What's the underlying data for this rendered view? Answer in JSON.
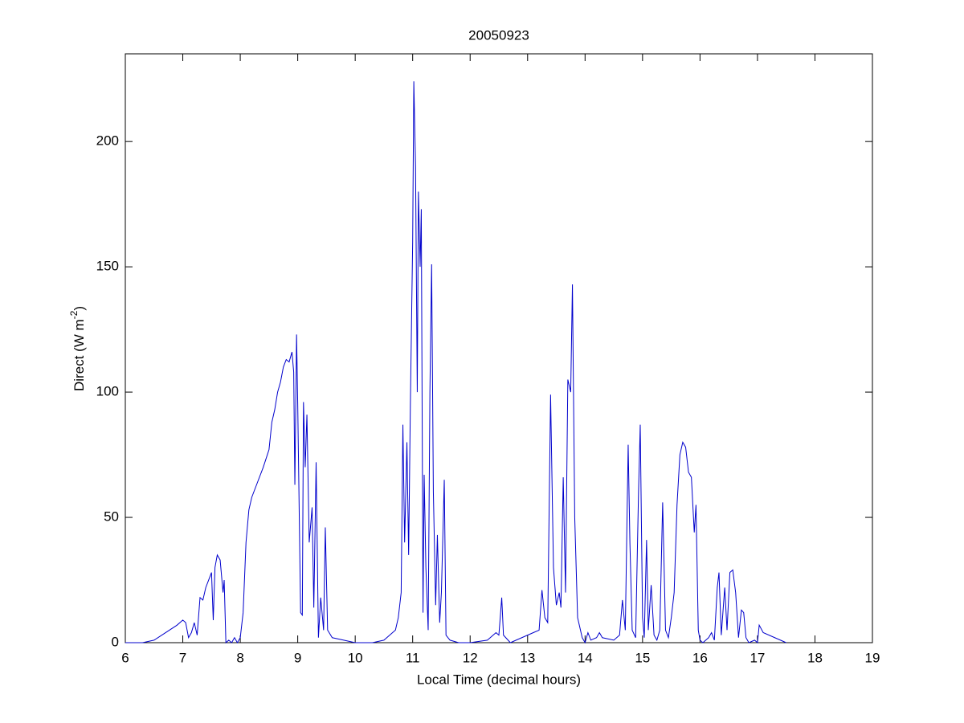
{
  "chart_data": {
    "type": "line",
    "title": "20050923",
    "xlabel": "Local Time (decimal hours)",
    "ylabel": [
      "Direct (W m",
      "-2",
      ")"
    ],
    "xlim": [
      6,
      19
    ],
    "ylim": [
      0,
      235
    ],
    "xticks": [
      6,
      7,
      8,
      9,
      10,
      11,
      12,
      13,
      14,
      15,
      16,
      17,
      18,
      19
    ],
    "yticks": [
      0,
      50,
      100,
      150,
      200
    ],
    "grid": false,
    "series": [
      {
        "color": "#0000cc",
        "x": [
          6.0,
          6.3,
          6.5,
          6.7,
          6.9,
          7.0,
          7.05,
          7.1,
          7.15,
          7.2,
          7.25,
          7.3,
          7.35,
          7.4,
          7.45,
          7.5,
          7.53,
          7.56,
          7.6,
          7.65,
          7.7,
          7.72,
          7.75,
          7.8,
          7.85,
          7.9,
          7.95,
          8.0,
          8.05,
          8.1,
          8.15,
          8.2,
          8.3,
          8.4,
          8.5,
          8.55,
          8.6,
          8.65,
          8.7,
          8.75,
          8.8,
          8.85,
          8.9,
          8.93,
          8.95,
          8.98,
          9.0,
          9.05,
          9.08,
          9.1,
          9.13,
          9.16,
          9.2,
          9.25,
          9.28,
          9.32,
          9.36,
          9.4,
          9.45,
          9.48,
          9.52,
          9.6,
          9.8,
          10.0,
          10.3,
          10.5,
          10.6,
          10.7,
          10.75,
          10.8,
          10.83,
          10.86,
          10.9,
          10.93,
          10.96,
          11.0,
          11.02,
          11.05,
          11.08,
          11.1,
          11.13,
          11.15,
          11.18,
          11.2,
          11.23,
          11.27,
          11.3,
          11.33,
          11.36,
          11.4,
          11.43,
          11.47,
          11.5,
          11.55,
          11.58,
          11.65,
          11.8,
          12.0,
          12.3,
          12.45,
          12.5,
          12.55,
          12.58,
          12.7,
          12.9,
          13.1,
          13.2,
          13.25,
          13.3,
          13.35,
          13.4,
          13.45,
          13.5,
          13.55,
          13.58,
          13.62,
          13.66,
          13.7,
          13.75,
          13.78,
          13.82,
          13.87,
          13.95,
          14.0,
          14.05,
          14.1,
          14.2,
          14.25,
          14.3,
          14.5,
          14.6,
          14.65,
          14.7,
          14.75,
          14.78,
          14.82,
          14.88,
          14.93,
          14.96,
          15.0,
          15.03,
          15.07,
          15.1,
          15.15,
          15.2,
          15.25,
          15.3,
          15.35,
          15.4,
          15.45,
          15.5,
          15.55,
          15.6,
          15.65,
          15.7,
          15.75,
          15.8,
          15.85,
          15.9,
          15.93,
          15.97,
          16.0,
          16.05,
          16.15,
          16.2,
          16.25,
          16.3,
          16.33,
          16.37,
          16.43,
          16.47,
          16.52,
          16.57,
          16.62,
          16.67,
          16.72,
          16.76,
          16.8,
          16.85,
          16.95,
          17.0,
          17.03,
          17.1,
          17.3,
          17.5
        ],
        "values": [
          0,
          0,
          1,
          4,
          7,
          9,
          8,
          2,
          4,
          8,
          3,
          18,
          17,
          22,
          25,
          28,
          9,
          30,
          35,
          33,
          20,
          25,
          0,
          1,
          0,
          2,
          0,
          2,
          12,
          40,
          53,
          58,
          64,
          70,
          77,
          88,
          93,
          100,
          104,
          110,
          113,
          112,
          116,
          108,
          63,
          123,
          95,
          12,
          11,
          96,
          70,
          91,
          40,
          54,
          14,
          72,
          2,
          18,
          5,
          46,
          5,
          2,
          1,
          0,
          0,
          1,
          3,
          5,
          10,
          20,
          87,
          40,
          80,
          35,
          95,
          160,
          224,
          190,
          100,
          180,
          150,
          173,
          12,
          67,
          30,
          5,
          100,
          151,
          60,
          15,
          43,
          8,
          20,
          65,
          3,
          1,
          0,
          0,
          1,
          4,
          3,
          18,
          3,
          0,
          2,
          4,
          5,
          21,
          10,
          8,
          99,
          30,
          15,
          20,
          14,
          66,
          20,
          105,
          100,
          143,
          50,
          10,
          2,
          0,
          4,
          1,
          2,
          4,
          2,
          1,
          3,
          17,
          5,
          79,
          40,
          5,
          2,
          60,
          87,
          10,
          2,
          41,
          5,
          23,
          3,
          1,
          5,
          56,
          5,
          2,
          10,
          20,
          55,
          75,
          80,
          78,
          68,
          66,
          44,
          55,
          5,
          1,
          0,
          2,
          4,
          1,
          22,
          28,
          3,
          22,
          5,
          28,
          29,
          20,
          2,
          13,
          12,
          2,
          0,
          1,
          0,
          7,
          4,
          2,
          0
        ]
      }
    ]
  }
}
